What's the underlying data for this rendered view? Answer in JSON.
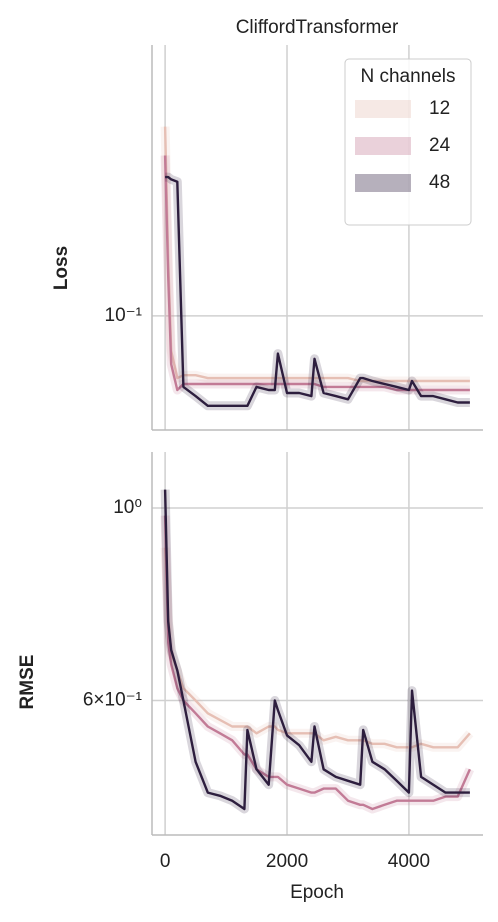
{
  "chart_data": [
    {
      "type": "line",
      "title": "CliffordTransformer",
      "ylabel": "Loss",
      "log_y": true,
      "grid": true,
      "legend_title": "N channels",
      "legend_loc": "upper right",
      "xlim": [
        -215,
        5215
      ],
      "xticks": [
        0,
        2000,
        4000
      ],
      "ylim": [
        0.059,
        0.35
      ],
      "yticks": [
        {
          "value": 0.1,
          "label": "10⁻¹"
        }
      ],
      "x": [
        0,
        50,
        100,
        200,
        300,
        500,
        700,
        900,
        1100,
        1300,
        1350,
        1500,
        1700,
        1800,
        1850,
        2000,
        2200,
        2400,
        2450,
        2600,
        2800,
        3000,
        3200,
        3250,
        3400,
        3600,
        3800,
        4000,
        4050,
        4200,
        4400,
        4600,
        4800,
        5000
      ],
      "series": [
        {
          "name": "12",
          "color": "#e6bfb4",
          "values": [
            0.24,
            0.13,
            0.085,
            0.075,
            0.076,
            0.076,
            0.075,
            0.075,
            0.075,
            0.075,
            0.075,
            0.075,
            0.075,
            0.075,
            0.075,
            0.075,
            0.075,
            0.075,
            0.075,
            0.075,
            0.075,
            0.075,
            0.074,
            0.074,
            0.074,
            0.074,
            0.074,
            0.074,
            0.074,
            0.074,
            0.074,
            0.074,
            0.074,
            0.074
          ]
        },
        {
          "name": "24",
          "color": "#c27b96",
          "values": [
            0.21,
            0.12,
            0.08,
            0.071,
            0.073,
            0.073,
            0.073,
            0.073,
            0.073,
            0.073,
            0.073,
            0.073,
            0.073,
            0.073,
            0.073,
            0.073,
            0.073,
            0.073,
            0.073,
            0.072,
            0.072,
            0.072,
            0.072,
            0.072,
            0.072,
            0.072,
            0.071,
            0.071,
            0.071,
            0.071,
            0.071,
            0.071,
            0.071,
            0.071
          ]
        },
        {
          "name": "48",
          "color": "#2d1e3e",
          "values": [
            0.19,
            0.19,
            0.188,
            0.186,
            0.072,
            0.069,
            0.066,
            0.066,
            0.066,
            0.066,
            0.066,
            0.072,
            0.071,
            0.071,
            0.084,
            0.07,
            0.07,
            0.069,
            0.082,
            0.07,
            0.069,
            0.068,
            0.075,
            0.075,
            0.074,
            0.073,
            0.072,
            0.071,
            0.074,
            0.069,
            0.069,
            0.068,
            0.067,
            0.067
          ]
        }
      ]
    },
    {
      "type": "line",
      "xlabel": "Epoch",
      "ylabel": "RMSE",
      "log_y": true,
      "grid": true,
      "xlim": [
        -215,
        5215
      ],
      "xticks": [
        0,
        2000,
        4000
      ],
      "ylim": [
        0.42,
        1.16
      ],
      "yticks": [
        {
          "value": 1,
          "label": "10⁰"
        },
        {
          "value": 0.6,
          "label": "6×10⁻¹"
        }
      ],
      "x": [
        0,
        50,
        100,
        200,
        300,
        500,
        700,
        900,
        1100,
        1300,
        1350,
        1500,
        1700,
        1800,
        1850,
        2000,
        2200,
        2400,
        2450,
        2600,
        2800,
        3000,
        3200,
        3250,
        3400,
        3600,
        3800,
        4000,
        4050,
        4200,
        4400,
        4600,
        4800,
        5000
      ],
      "series": [
        {
          "name": "12",
          "color": "#e6bfb4",
          "values": [
            0.9,
            0.75,
            0.68,
            0.65,
            0.62,
            0.6,
            0.58,
            0.57,
            0.56,
            0.56,
            0.56,
            0.55,
            0.56,
            0.56,
            0.555,
            0.55,
            0.55,
            0.55,
            0.55,
            0.54,
            0.545,
            0.54,
            0.54,
            0.54,
            0.535,
            0.535,
            0.53,
            0.53,
            0.53,
            0.535,
            0.53,
            0.53,
            0.53,
            0.55
          ]
        },
        {
          "name": "24",
          "color": "#c27b96",
          "values": [
            0.98,
            0.7,
            0.66,
            0.62,
            0.6,
            0.58,
            0.56,
            0.55,
            0.54,
            0.52,
            0.52,
            0.5,
            0.49,
            0.49,
            0.49,
            0.48,
            0.475,
            0.47,
            0.47,
            0.475,
            0.475,
            0.46,
            0.455,
            0.455,
            0.45,
            0.455,
            0.46,
            0.46,
            0.46,
            0.46,
            0.46,
            0.465,
            0.465,
            0.5
          ]
        },
        {
          "name": "48",
          "color": "#2d1e3e",
          "values": [
            1.05,
            0.74,
            0.686,
            0.65,
            0.6,
            0.51,
            0.47,
            0.466,
            0.46,
            0.45,
            0.555,
            0.5,
            0.48,
            0.6,
            0.585,
            0.547,
            0.533,
            0.51,
            0.56,
            0.5,
            0.49,
            0.485,
            0.48,
            0.555,
            0.51,
            0.5,
            0.485,
            0.47,
            0.616,
            0.49,
            0.48,
            0.47,
            0.47,
            0.47
          ]
        }
      ]
    }
  ]
}
